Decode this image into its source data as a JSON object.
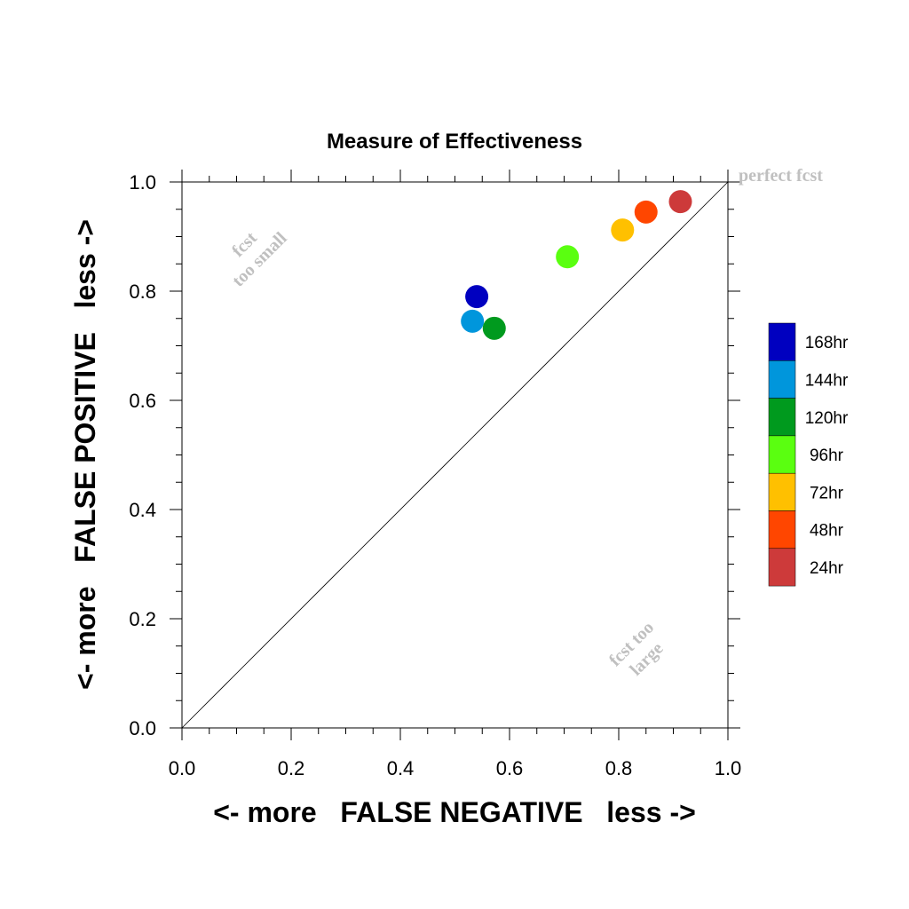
{
  "chart_data": {
    "type": "scatter",
    "title": "Measure of Effectiveness",
    "xlabel": "<- more   FALSE NEGATIVE   less ->",
    "ylabel": "<- more   FALSE POSITIVE   less ->",
    "xlim": [
      0,
      1
    ],
    "ylim": [
      0,
      1
    ],
    "x_ticks": [
      "0.0",
      "0.2",
      "0.4",
      "0.6",
      "0.8",
      "1.0"
    ],
    "y_ticks": [
      "0.0",
      "0.2",
      "0.4",
      "0.6",
      "0.8",
      "1.0"
    ],
    "reference_line": "y = x",
    "grid": false,
    "legend_position": "right",
    "annotations": {
      "perfect": "perfect fcst",
      "too_small": [
        "fcst",
        "too small"
      ],
      "too_large": [
        "fcst too",
        "large"
      ]
    },
    "series": [
      {
        "name": "168hr",
        "color": "#0000c0",
        "x": 0.54,
        "y": 0.79
      },
      {
        "name": "144hr",
        "color": "#0096dc",
        "x": 0.532,
        "y": 0.745
      },
      {
        "name": "120hr",
        "color": "#009a1e",
        "x": 0.572,
        "y": 0.732
      },
      {
        "name": "96hr",
        "color": "#5aff10",
        "x": 0.706,
        "y": 0.863
      },
      {
        "name": "72hr",
        "color": "#ffc000",
        "x": 0.807,
        "y": 0.912
      },
      {
        "name": "48hr",
        "color": "#ff4600",
        "x": 0.85,
        "y": 0.945
      },
      {
        "name": "24hr",
        "color": "#cd3a3a",
        "x": 0.913,
        "y": 0.964
      }
    ]
  }
}
